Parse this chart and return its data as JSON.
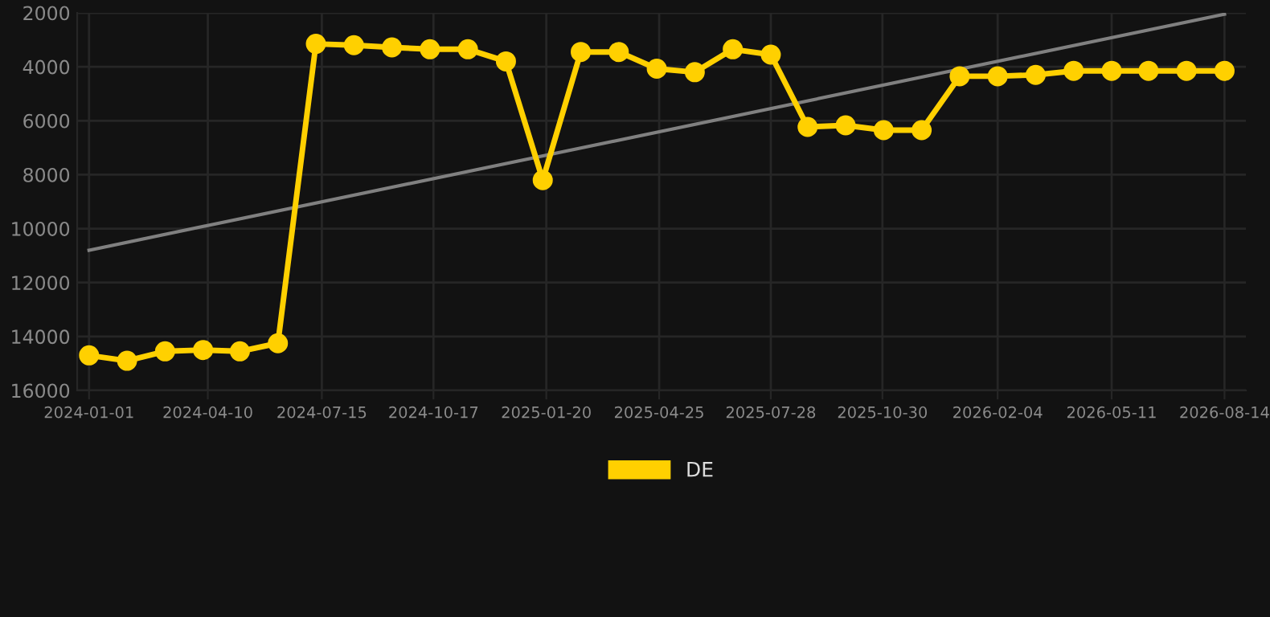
{
  "chart_data": {
    "type": "line",
    "x": [
      "2024-01-01",
      "2024-02-02",
      "2024-03-05",
      "2024-04-06",
      "2024-05-07",
      "2024-06-08",
      "2024-07-10",
      "2024-08-11",
      "2024-09-12",
      "2024-10-14",
      "2024-11-15",
      "2024-12-17",
      "2025-01-17",
      "2025-02-18",
      "2025-03-22",
      "2025-04-23",
      "2025-05-25",
      "2025-06-26",
      "2025-07-28",
      "2025-08-28",
      "2025-09-29",
      "2025-10-31",
      "2025-12-02",
      "2026-01-03",
      "2026-02-04",
      "2026-03-08",
      "2026-04-09",
      "2026-05-11",
      "2026-06-11",
      "2026-07-13",
      "2026-08-14"
    ],
    "series": [
      {
        "name": "DE",
        "color": "#ffd000",
        "marker": "circle",
        "values": [
          14700,
          14900,
          14550,
          14500,
          14550,
          14250,
          3150,
          3200,
          3280,
          3350,
          3350,
          3800,
          8200,
          3450,
          3450,
          4070,
          4200,
          3350,
          3550,
          6230,
          6170,
          6350,
          6350,
          4350,
          4350,
          4300,
          4150,
          4150,
          4150,
          4150,
          4150
        ]
      },
      {
        "type": "line",
        "color": "#808080",
        "marker": "none",
        "x": [
          "2024-01-01",
          "2026-08-14"
        ],
        "values": [
          10800,
          2050
        ]
      }
    ],
    "xlim": [
      "2023-12-22",
      "2026-09-01"
    ],
    "xticks": [
      "2024-01-01",
      "2024-04-10",
      "2024-07-15",
      "2024-10-17",
      "2025-01-20",
      "2025-04-25",
      "2025-07-28",
      "2025-10-30",
      "2026-02-04",
      "2026-05-11",
      "2026-08-14"
    ],
    "ylim": [
      16000,
      2000
    ],
    "yticks": [
      2000,
      4000,
      6000,
      8000,
      10000,
      12000,
      14000,
      16000
    ],
    "grid": true,
    "legend": "bottom"
  }
}
